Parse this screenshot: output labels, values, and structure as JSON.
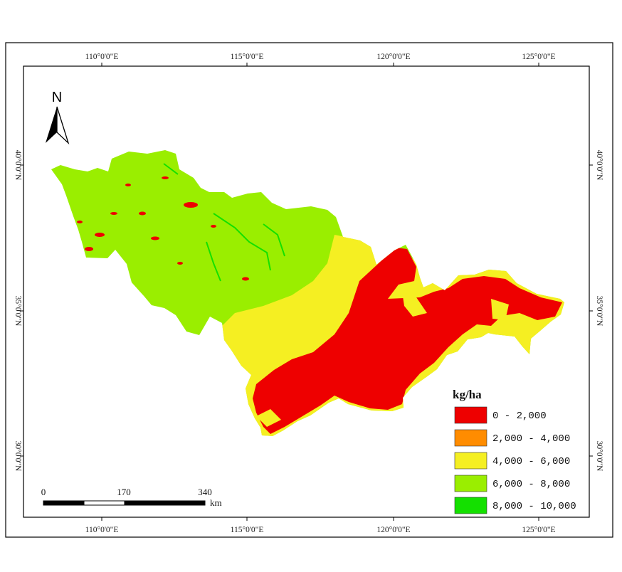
{
  "map": {
    "north_label": "N",
    "lon_ticks_top": [
      "110°0'0\"E",
      "115°0'0\"E",
      "120°0'0\"E",
      "125°0'0\"E"
    ],
    "lon_ticks_bottom": [
      "110°0'0\"E",
      "115°0'0\"E",
      "120°0'0\"E",
      "125°0'0\"E"
    ],
    "lat_ticks_left": [
      "40°0'0\"N",
      "35°0'0\"N",
      "30°0'0\"N"
    ],
    "lat_ticks_right": [
      "40°0'0\"N",
      "35°0'0\"N",
      "30°0'0\"N"
    ]
  },
  "legend": {
    "title": "kg/ha",
    "items": [
      {
        "label": "0 - 2,000",
        "color": "#ee0000"
      },
      {
        "label": "2,000 - 4,000",
        "color": "#ff8c00"
      },
      {
        "label": "4,000 - 6,000",
        "color": "#f5ef22"
      },
      {
        "label": "6,000 - 8,000",
        "color": "#9aee00"
      },
      {
        "label": "8,000 - 10,000",
        "color": "#14e000"
      }
    ]
  },
  "scale_bar": {
    "labels": [
      "0",
      "170",
      "340"
    ],
    "unit": "km"
  }
}
